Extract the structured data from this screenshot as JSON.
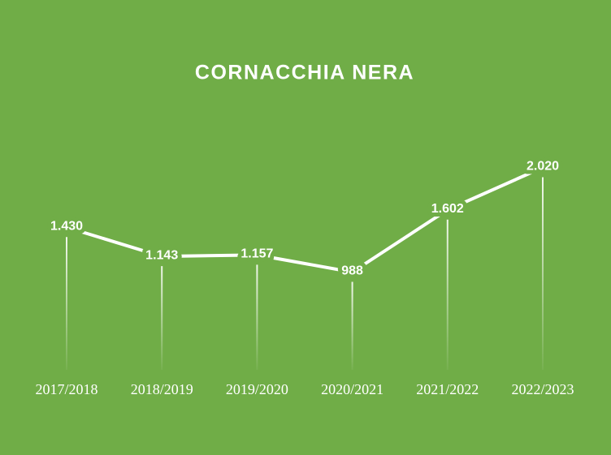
{
  "chart_data": {
    "type": "line",
    "title": "CORNACCHIA NERA",
    "categories": [
      "2017/2018",
      "2018/2019",
      "2019/2020",
      "2020/2021",
      "2021/2022",
      "2022/2023"
    ],
    "values": [
      1430,
      1143,
      1157,
      988,
      1602,
      2020
    ],
    "value_labels": [
      "1.430",
      "1.143",
      "1.157",
      "988",
      "1.602",
      "2.020"
    ],
    "color": "#ffffff"
  }
}
